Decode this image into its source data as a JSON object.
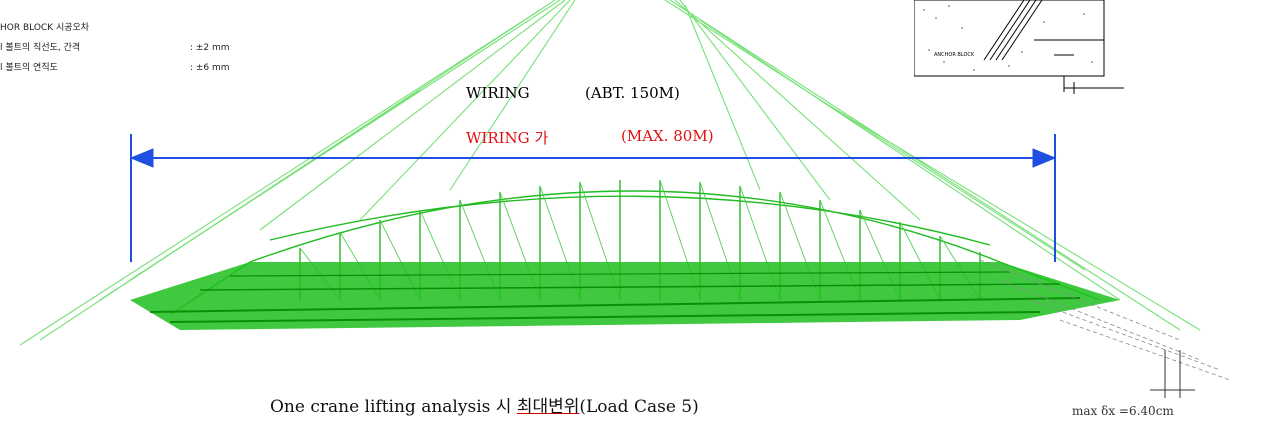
{
  "notes": {
    "title": "HOR BLOCK 시공오차",
    "rows": [
      {
        "label": "l 볼트의 직선도, 간격",
        "value": ": ±2 mm"
      },
      {
        "label": "l 볼트의 연직도",
        "value": ": ±6 mm"
      }
    ]
  },
  "labels": {
    "wiring": "WIRING",
    "wiring_abt": "(ABT. 150M)",
    "wiring_ga": "WIRING 가",
    "wiring_max": "(MAX. 80M)"
  },
  "inset": {
    "anchor_label": "ANCHOR BLOCK"
  },
  "caption": {
    "main": "One crane lifting analysis 시",
    "highlight": "최대변위",
    "suffix": "(Load Case 5)"
  },
  "displacement": {
    "text": "max δx =6.40cm"
  },
  "colors": {
    "mesh": "#22cc22",
    "mesh_light": "#77e077",
    "dimension": "#1f4fe0",
    "wiring_label": "#000000",
    "wiring_red": "#e01010"
  }
}
